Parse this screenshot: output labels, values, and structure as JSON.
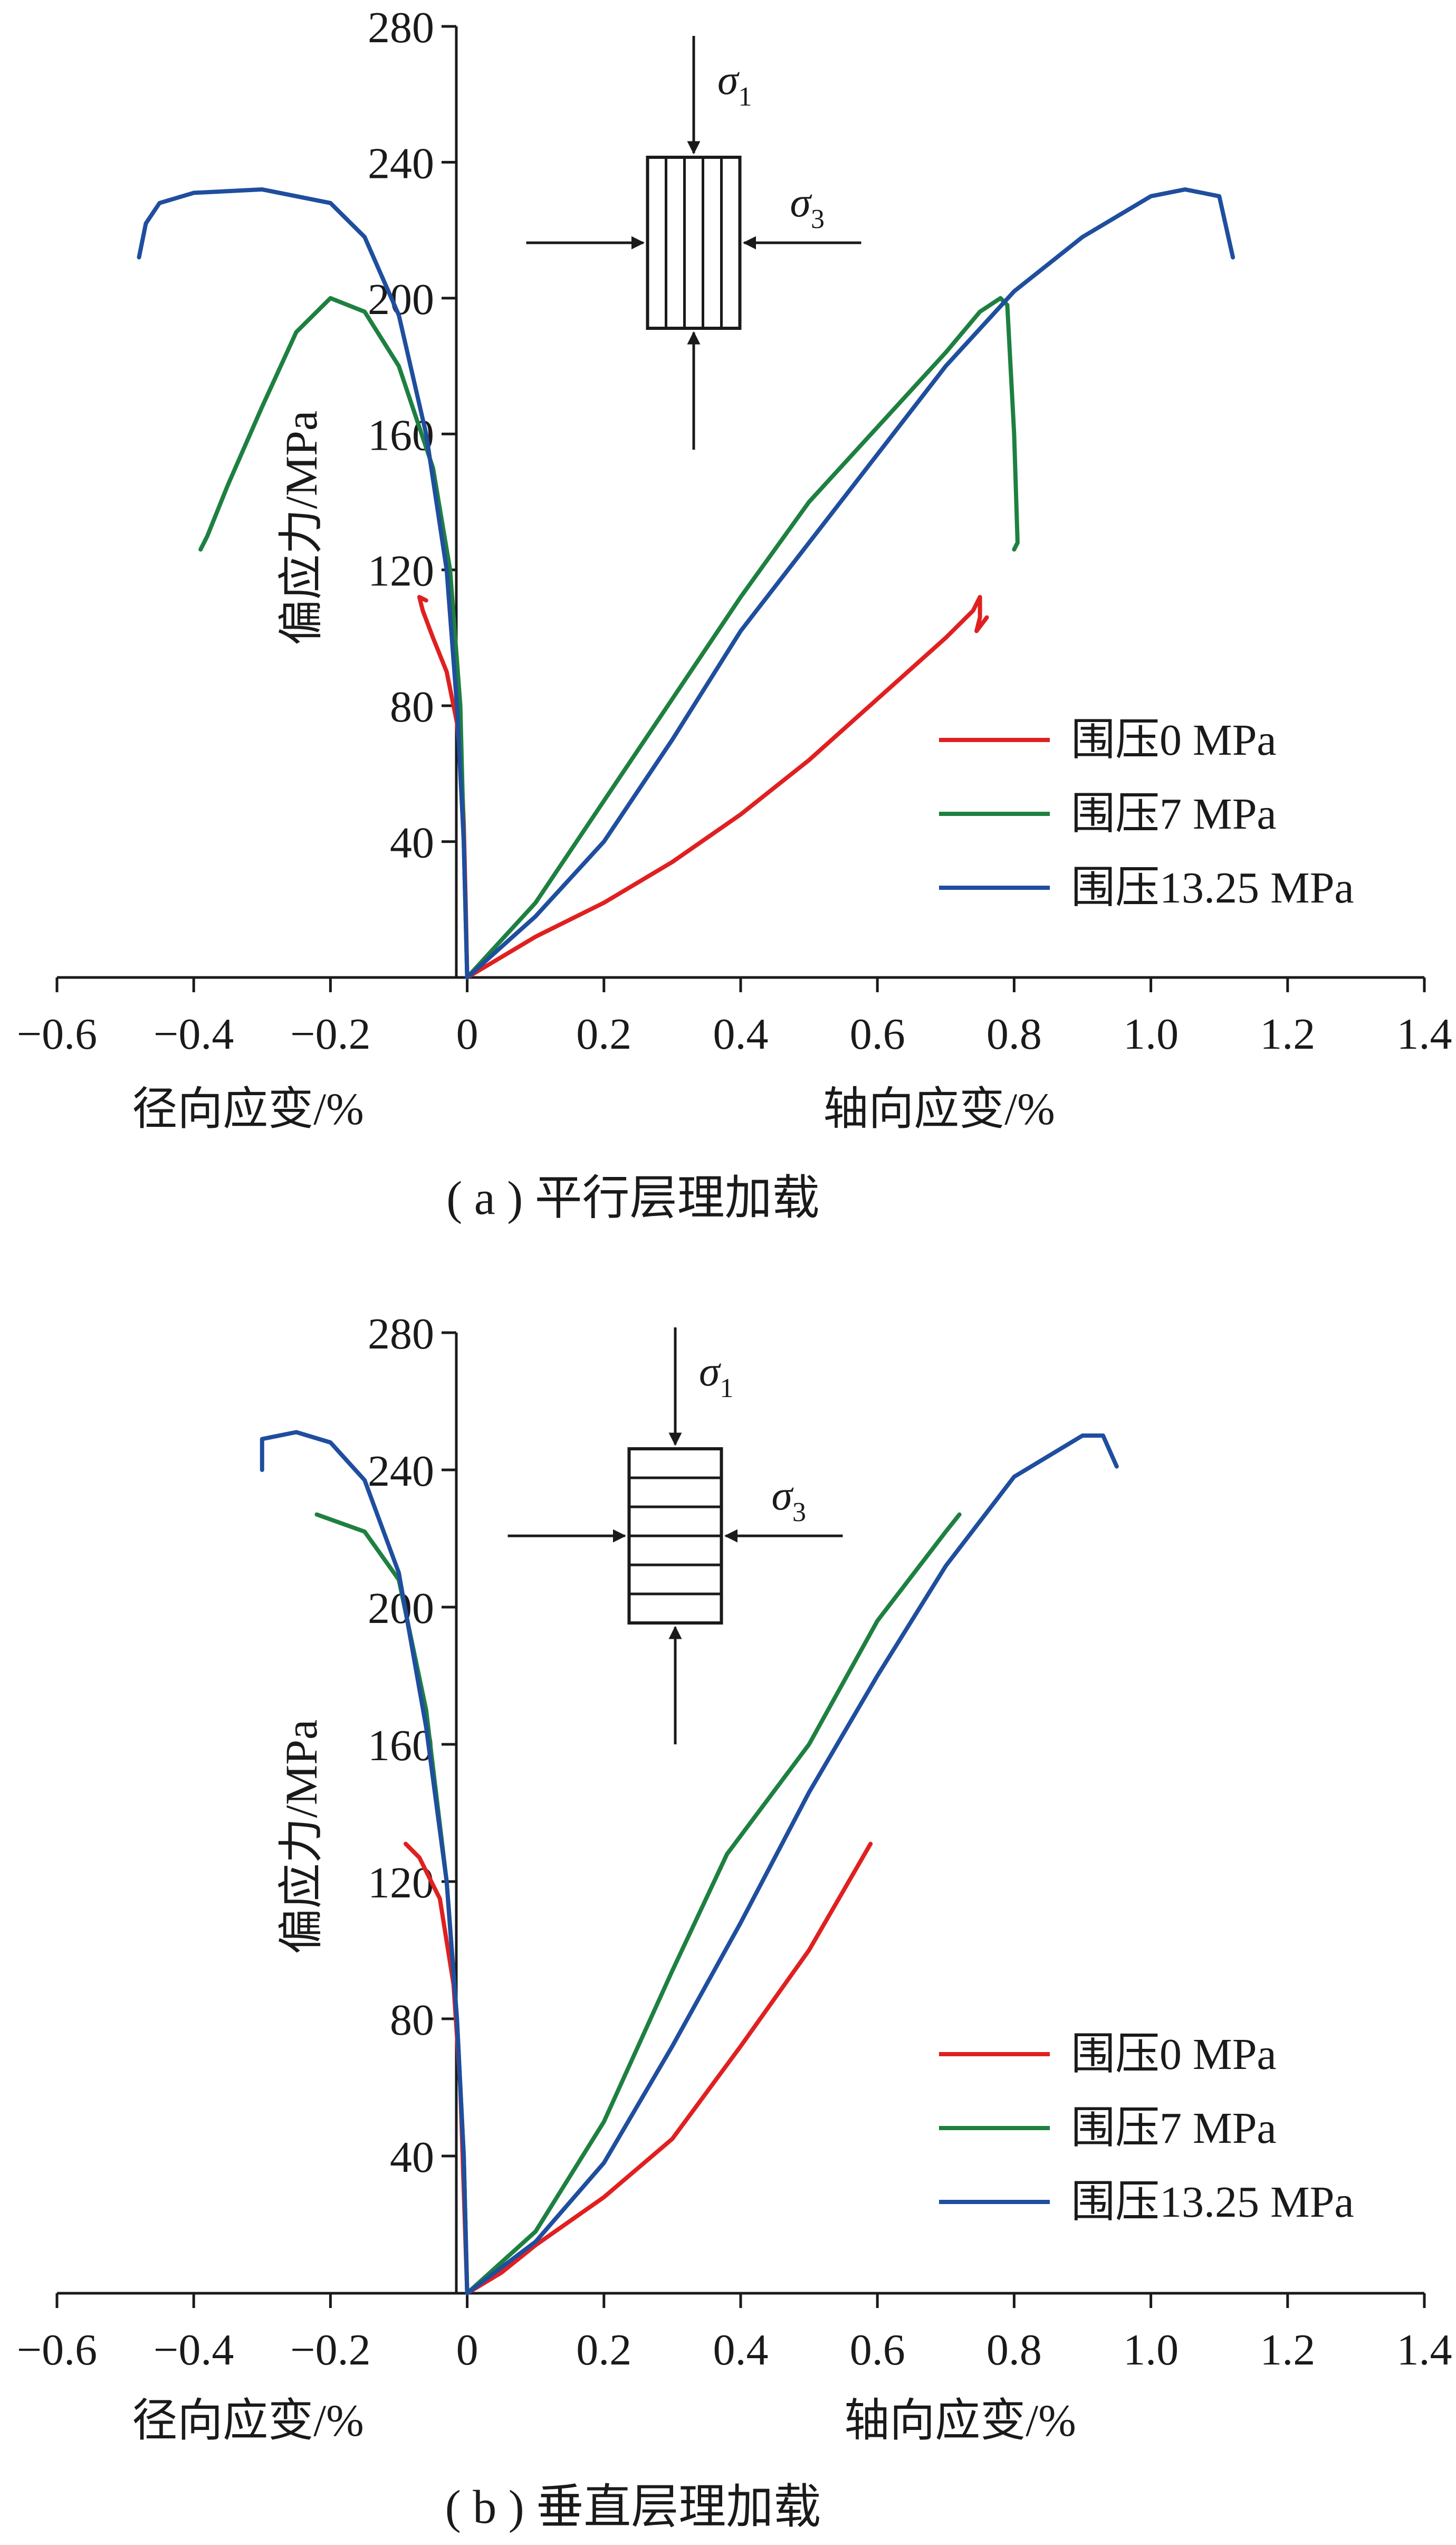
{
  "chart_data": [
    {
      "type": "line",
      "caption": "( a ) 平行层理加载",
      "ylabel": "偏应力/MPa",
      "xlabel_left": "径向应变/%",
      "xlabel_right": "轴向应变/%",
      "xlim": [
        -0.6,
        1.4
      ],
      "ylim": [
        0,
        280
      ],
      "xticks": [
        -0.6,
        -0.4,
        -0.2,
        0,
        0.2,
        0.4,
        0.6,
        0.8,
        1.0,
        1.2,
        1.4
      ],
      "xtick_labels": [
        "−0.6",
        "−0.4",
        "−0.2",
        "0",
        "0.2",
        "0.4",
        "0.6",
        "0.8",
        "1.0",
        "1.2",
        "1.4"
      ],
      "yticks": [
        40,
        80,
        120,
        160,
        200,
        240,
        280
      ],
      "ytick_labels": [
        "40",
        "80",
        "120",
        "160",
        "200",
        "240",
        "280"
      ],
      "legend_position": "lower-right",
      "inset": {
        "orientation": "parallel",
        "sigma1": "σ",
        "sigma1_sub": "1",
        "sigma3": "σ",
        "sigma3_sub": "3"
      },
      "series": [
        {
          "name": "围压0 MPa",
          "color": "#e02020",
          "radial": [
            [
              0,
              0
            ],
            [
              -0.002,
              20
            ],
            [
              -0.005,
              45
            ],
            [
              -0.008,
              60
            ],
            [
              -0.015,
              75
            ],
            [
              -0.03,
              90
            ],
            [
              -0.05,
              100
            ],
            [
              -0.065,
              108
            ],
            [
              -0.07,
              112
            ],
            [
              -0.06,
              111
            ]
          ],
          "axial": [
            [
              0,
              0
            ],
            [
              0.1,
              12
            ],
            [
              0.2,
              22
            ],
            [
              0.3,
              34
            ],
            [
              0.4,
              48
            ],
            [
              0.5,
              64
            ],
            [
              0.6,
              82
            ],
            [
              0.7,
              100
            ],
            [
              0.74,
              108
            ],
            [
              0.75,
              112
            ],
            [
              0.75,
              106
            ],
            [
              0.745,
              102
            ],
            [
              0.76,
              106
            ]
          ]
        },
        {
          "name": "围压7 MPa",
          "color": "#1e8040",
          "radial": [
            [
              0,
              0
            ],
            [
              -0.005,
              40
            ],
            [
              -0.01,
              80
            ],
            [
              -0.025,
              120
            ],
            [
              -0.05,
              150
            ],
            [
              -0.1,
              180
            ],
            [
              -0.15,
              196
            ],
            [
              -0.2,
              200
            ],
            [
              -0.25,
              190
            ],
            [
              -0.3,
              168
            ],
            [
              -0.35,
              145
            ],
            [
              -0.38,
              130
            ],
            [
              -0.39,
              126
            ]
          ],
          "axial": [
            [
              0,
              0
            ],
            [
              0.1,
              22
            ],
            [
              0.2,
              52
            ],
            [
              0.3,
              82
            ],
            [
              0.4,
              112
            ],
            [
              0.5,
              140
            ],
            [
              0.6,
              162
            ],
            [
              0.7,
              184
            ],
            [
              0.75,
              196
            ],
            [
              0.78,
              200
            ],
            [
              0.79,
              198
            ],
            [
              0.8,
              160
            ],
            [
              0.805,
              128
            ],
            [
              0.8,
              126
            ]
          ]
        },
        {
          "name": "围压13.25 MPa",
          "color": "#1f4e9e",
          "radial": [
            [
              0,
              0
            ],
            [
              -0.005,
              40
            ],
            [
              -0.015,
              80
            ],
            [
              -0.03,
              120
            ],
            [
              -0.06,
              160
            ],
            [
              -0.1,
              195
            ],
            [
              -0.15,
              218
            ],
            [
              -0.2,
              228
            ],
            [
              -0.3,
              232
            ],
            [
              -0.4,
              231
            ],
            [
              -0.45,
              228
            ],
            [
              -0.47,
              222
            ],
            [
              -0.48,
              212
            ]
          ],
          "axial": [
            [
              0,
              0
            ],
            [
              0.1,
              18
            ],
            [
              0.2,
              40
            ],
            [
              0.3,
              70
            ],
            [
              0.4,
              102
            ],
            [
              0.5,
              128
            ],
            [
              0.6,
              154
            ],
            [
              0.7,
              180
            ],
            [
              0.8,
              202
            ],
            [
              0.9,
              218
            ],
            [
              1.0,
              230
            ],
            [
              1.05,
              232
            ],
            [
              1.1,
              230
            ],
            [
              1.12,
              212
            ]
          ]
        }
      ]
    },
    {
      "type": "line",
      "caption": "( b ) 垂直层理加载",
      "ylabel": "偏应力/MPa",
      "xlabel_left": "径向应变/%",
      "xlabel_right": "轴向应变/%",
      "xlim": [
        -0.6,
        1.4
      ],
      "ylim": [
        0,
        280
      ],
      "xticks": [
        -0.6,
        -0.4,
        -0.2,
        0,
        0.2,
        0.4,
        0.6,
        0.8,
        1.0,
        1.2,
        1.4
      ],
      "xtick_labels": [
        "−0.6",
        "−0.4",
        "−0.2",
        "0",
        "0.2",
        "0.4",
        "0.6",
        "0.8",
        "1.0",
        "1.2",
        "1.4"
      ],
      "yticks": [
        40,
        80,
        120,
        160,
        200,
        240,
        280
      ],
      "ytick_labels": [
        "40",
        "80",
        "120",
        "160",
        "200",
        "240",
        "280"
      ],
      "legend_position": "lower-right",
      "inset": {
        "orientation": "perpendicular",
        "sigma1": "σ",
        "sigma1_sub": "1",
        "sigma3": "σ",
        "sigma3_sub": "3"
      },
      "series": [
        {
          "name": "围压0 MPa",
          "color": "#e02020",
          "radial": [
            [
              0,
              0
            ],
            [
              -0.005,
              30
            ],
            [
              -0.01,
              60
            ],
            [
              -0.02,
              90
            ],
            [
              -0.04,
              115
            ],
            [
              -0.07,
              127
            ],
            [
              -0.09,
              131
            ]
          ],
          "axial": [
            [
              0,
              0
            ],
            [
              0.05,
              6
            ],
            [
              0.1,
              14
            ],
            [
              0.2,
              28
            ],
            [
              0.3,
              45
            ],
            [
              0.4,
              72
            ],
            [
              0.5,
              100
            ],
            [
              0.59,
              131
            ]
          ]
        },
        {
          "name": "围压7 MPa",
          "color": "#1e8040",
          "radial": [
            [
              0,
              0
            ],
            [
              -0.005,
              40
            ],
            [
              -0.015,
              80
            ],
            [
              -0.03,
              120
            ],
            [
              -0.06,
              170
            ],
            [
              -0.1,
              208
            ],
            [
              -0.15,
              222
            ],
            [
              -0.22,
              227
            ]
          ],
          "axial": [
            [
              0,
              0
            ],
            [
              0.1,
              18
            ],
            [
              0.2,
              50
            ],
            [
              0.3,
              94
            ],
            [
              0.38,
              128
            ],
            [
              0.5,
              160
            ],
            [
              0.6,
              196
            ],
            [
              0.7,
              222
            ],
            [
              0.72,
              227
            ]
          ]
        },
        {
          "name": "围压13.25 MPa",
          "color": "#1f4e9e",
          "radial": [
            [
              0,
              0
            ],
            [
              -0.005,
              40
            ],
            [
              -0.015,
              80
            ],
            [
              -0.03,
              120
            ],
            [
              -0.06,
              165
            ],
            [
              -0.1,
              210
            ],
            [
              -0.15,
              237
            ],
            [
              -0.2,
              248
            ],
            [
              -0.25,
              251
            ],
            [
              -0.3,
              249
            ],
            [
              -0.3,
              240
            ]
          ],
          "axial": [
            [
              0,
              0
            ],
            [
              0.1,
              15
            ],
            [
              0.2,
              38
            ],
            [
              0.3,
              72
            ],
            [
              0.4,
              108
            ],
            [
              0.5,
              146
            ],
            [
              0.6,
              180
            ],
            [
              0.7,
              212
            ],
            [
              0.8,
              238
            ],
            [
              0.9,
              250
            ],
            [
              0.93,
              250
            ],
            [
              0.95,
              241
            ]
          ]
        }
      ]
    }
  ]
}
